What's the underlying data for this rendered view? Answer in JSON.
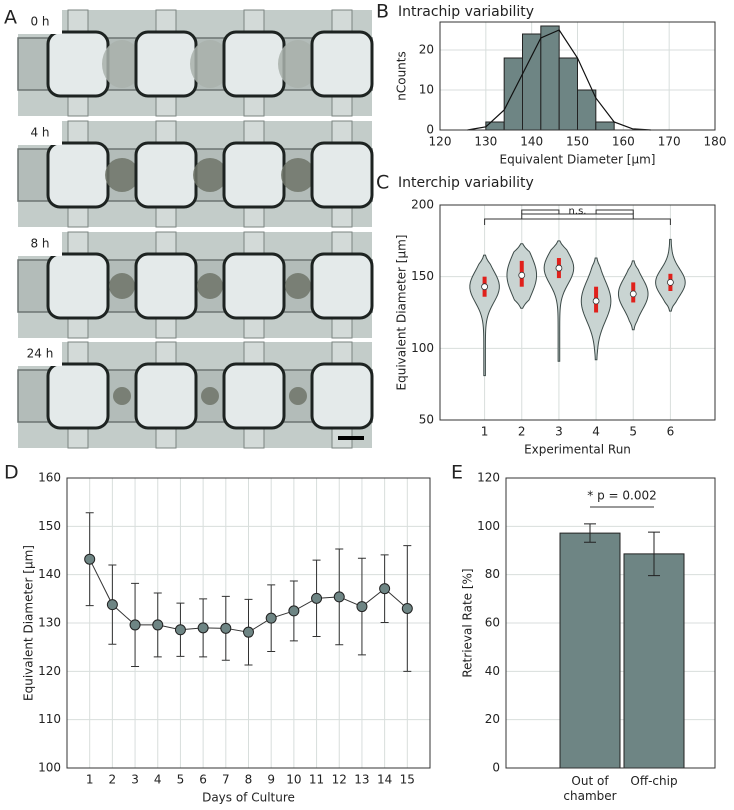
{
  "image_panel": {
    "label": "A",
    "timepoints": [
      "0 h",
      "4 h",
      "8 h",
      "24 h"
    ]
  },
  "chart_data": [
    {
      "type": "histogram",
      "label": "B",
      "title": "Intrachip variability",
      "xlabel": "Equivalent Diameter [µm]",
      "ylabel": "nCounts",
      "bins": [
        130,
        134,
        138,
        142,
        146,
        150,
        154,
        158
      ],
      "counts": [
        2,
        18,
        24,
        26,
        18,
        10,
        2
      ],
      "color": "#6e8584",
      "fit": {
        "x": [
          126,
          130,
          134,
          138,
          142,
          146,
          150,
          154,
          158,
          162,
          166
        ],
        "values": [
          0,
          0.8,
          5,
          14,
          23,
          25,
          18,
          8,
          2,
          0.3,
          0
        ]
      },
      "xlim": [
        120,
        180
      ],
      "xticks": [
        120,
        130,
        140,
        150,
        160,
        170,
        180
      ],
      "ylim": [
        0,
        27
      ],
      "yticks": [
        0,
        10,
        20
      ],
      "grid": true
    },
    {
      "type": "violin",
      "label": "C",
      "title": "Interchip variability",
      "xlabel": "Experimental Run",
      "ylabel": "Equivalent Diameter [µm]",
      "categories": [
        "1",
        "2",
        "3",
        "4",
        "5",
        "6"
      ],
      "min": [
        81,
        128,
        91,
        92,
        113,
        126
      ],
      "max": [
        165,
        173,
        175,
        163,
        161,
        176
      ],
      "q1": [
        136,
        143,
        149,
        125,
        132,
        140
      ],
      "q3": [
        150,
        161,
        163,
        143,
        146,
        152
      ],
      "median": [
        143,
        151,
        156,
        133,
        138,
        146
      ],
      "color": "#c9d4d2",
      "annotation": "n.s.",
      "ylim": [
        50,
        200
      ],
      "yticks": [
        50,
        100,
        150,
        200
      ],
      "grid": true
    },
    {
      "type": "line",
      "label": "D",
      "xlabel": "Days of Culture",
      "ylabel": "Equivalent Diameter [µm]",
      "x": [
        1,
        2,
        3,
        4,
        5,
        6,
        7,
        8,
        9,
        10,
        11,
        12,
        13,
        14,
        15
      ],
      "values": [
        143.2,
        133.8,
        129.6,
        129.6,
        128.6,
        129,
        128.9,
        128.1,
        131,
        132.5,
        135.1,
        135.4,
        133.4,
        137.1,
        133
      ],
      "errors": [
        9.6,
        8.2,
        8.6,
        6.6,
        5.5,
        6,
        6.6,
        6.8,
        6.9,
        6.2,
        7.9,
        9.9,
        10,
        7,
        13
      ],
      "color": "#6e8584",
      "xlim": [
        0,
        16
      ],
      "xticks": [
        1,
        2,
        3,
        4,
        5,
        6,
        7,
        8,
        9,
        10,
        11,
        12,
        13,
        14,
        15
      ],
      "ylim": [
        100,
        160
      ],
      "yticks": [
        100,
        110,
        120,
        130,
        140,
        150,
        160
      ],
      "grid": true
    },
    {
      "type": "bar",
      "label": "E",
      "ylabel": "Retrieval Rate [%]",
      "categories": [
        "Out of chamber",
        "Off-chip"
      ],
      "values": [
        97.2,
        88.6
      ],
      "errors": [
        3.8,
        9
      ],
      "color": "#6e8584",
      "annotation": "* p = 0.002",
      "ylim": [
        0,
        120
      ],
      "yticks": [
        0,
        20,
        40,
        60,
        80,
        100,
        120
      ],
      "grid": true
    }
  ]
}
